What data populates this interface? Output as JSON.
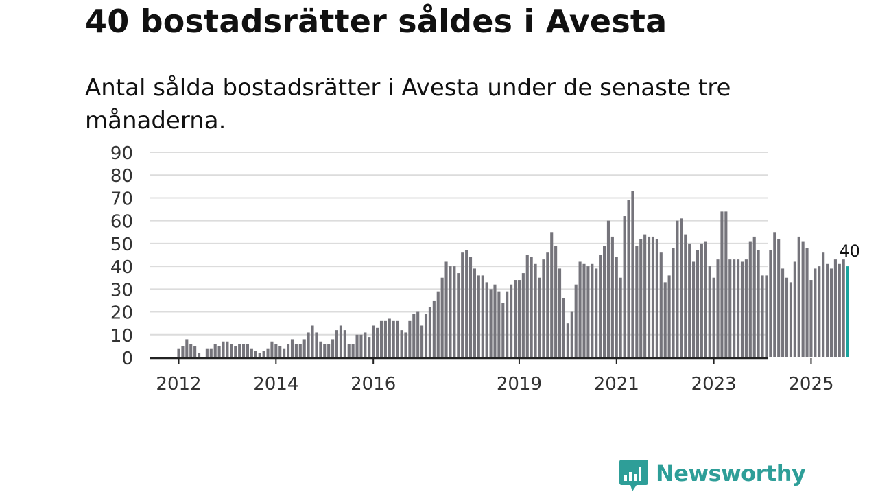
{
  "title": "40 bostadsrätter såldes i Avesta",
  "subtitle": "Antal sålda bostadsrätter i Avesta under de senaste tre månaderna.",
  "brand": {
    "name": "Newsworthy",
    "icon": "newsworthy-logo-icon"
  },
  "colors": {
    "bar": "#75747b",
    "highlight": "#1aa39d",
    "grid": "#dcdcdc",
    "axis": "#222222",
    "brand": "#2e9e98"
  },
  "chart_data": {
    "type": "bar",
    "title": "40 bostadsrätter såldes i Avesta",
    "xlabel": "",
    "ylabel": "",
    "ylim": [
      0,
      90
    ],
    "yticks": [
      0,
      10,
      20,
      30,
      40,
      50,
      60,
      70,
      80,
      90
    ],
    "grid": true,
    "start": "2012-01",
    "frequency": "monthly",
    "xtick_labels": [
      {
        "label": "2012",
        "index": 0
      },
      {
        "label": "2014",
        "index": 24
      },
      {
        "label": "2016",
        "index": 48
      },
      {
        "label": "2019",
        "index": 84
      },
      {
        "label": "2021",
        "index": 108
      },
      {
        "label": "2023",
        "index": 132
      },
      {
        "label": "2025",
        "index": 156
      }
    ],
    "highlight_label": "40",
    "values": [
      4,
      5,
      8,
      6,
      5,
      2,
      0,
      4,
      4,
      6,
      5,
      7,
      7,
      6,
      5,
      6,
      6,
      6,
      4,
      3,
      2,
      3,
      4,
      7,
      6,
      5,
      4,
      6,
      8,
      6,
      6,
      8,
      11,
      14,
      11,
      7,
      6,
      6,
      8,
      12,
      14,
      12,
      6,
      6,
      10,
      10,
      11,
      9,
      14,
      13,
      16,
      16,
      17,
      16,
      16,
      12,
      11,
      16,
      19,
      20,
      14,
      19,
      22,
      25,
      29,
      35,
      42,
      40,
      40,
      37,
      46,
      47,
      44,
      39,
      36,
      36,
      33,
      30,
      32,
      29,
      24,
      29,
      32,
      34,
      34,
      37,
      45,
      44,
      41,
      35,
      43,
      46,
      55,
      49,
      39,
      26,
      15,
      20,
      32,
      42,
      41,
      40,
      41,
      39,
      45,
      49,
      60,
      53,
      44,
      35,
      62,
      69,
      73,
      49,
      52,
      54,
      53,
      53,
      52,
      46,
      33,
      36,
      48,
      60,
      61,
      54,
      50,
      42,
      47,
      50,
      51,
      40,
      35,
      43,
      64,
      64,
      43,
      43,
      43,
      42,
      43,
      51,
      53,
      47,
      36,
      36,
      47,
      55,
      52,
      39,
      35,
      33,
      42,
      53,
      51,
      48,
      34,
      39,
      40,
      46,
      41,
      39,
      43,
      41,
      43,
      40
    ]
  }
}
